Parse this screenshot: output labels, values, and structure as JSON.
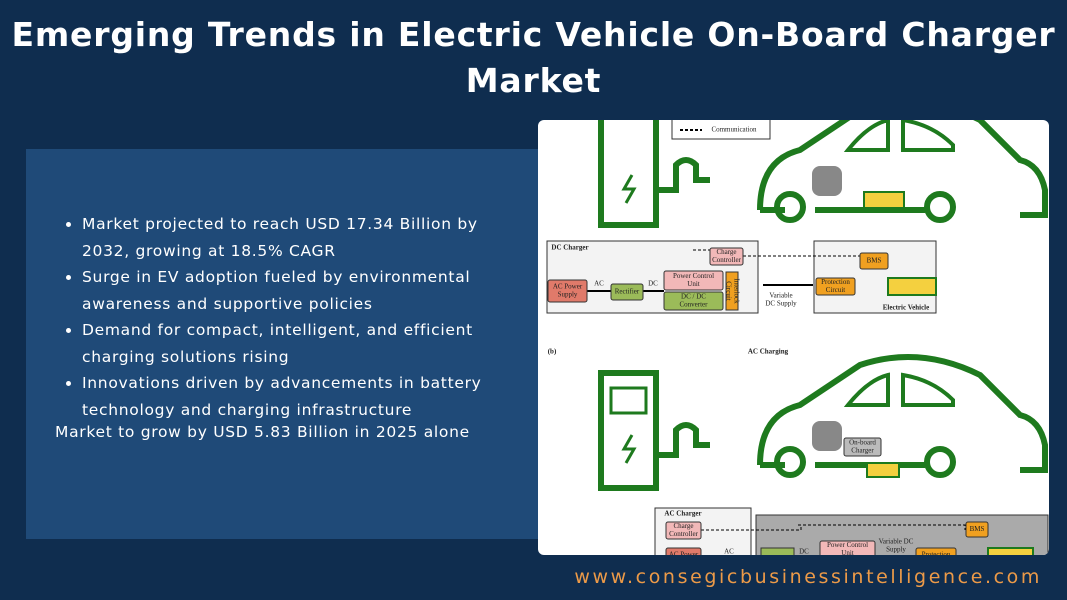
{
  "header": {
    "title": "Emerging Trends in Electric Vehicle On-Board Charger Market"
  },
  "panel": {
    "bullets": [
      "Market projected to reach USD 17.34 Billion by 2032, growing at 18.5% CAGR",
      "Surge in EV adoption fueled by environmental awareness and supportive policies",
      "Demand for compact, intelligent, and efficient charging solutions rising",
      "Innovations driven by advancements in battery technology and charging infrastructure"
    ],
    "summary": "Market to grow by USD 5.83 Billion in 2025 alone"
  },
  "figure": {
    "legend": "Communication",
    "dc": {
      "title": "DC Charger",
      "ac_power_supply": [
        "AC Power",
        "Supply"
      ],
      "ac": "AC",
      "rectifier": "Rectifier",
      "dc": "DC",
      "power_control_unit": [
        "Power Control",
        "Unit"
      ],
      "converter": [
        "DC / DC",
        "Converter"
      ],
      "interlock": [
        "Interlock",
        "Circuit"
      ],
      "charge_controller": [
        "Charge",
        "Controller"
      ],
      "variable_supply": [
        "Variable",
        "DC Supply"
      ],
      "bms": "BMS",
      "protection": [
        "Protection",
        "Circuit"
      ],
      "ev": "Electric Vehicle"
    },
    "panel_label": "(b)",
    "ac_title": "AC Charging",
    "ac": {
      "on_board_charger": [
        "On-board",
        "Charger"
      ],
      "title": "AC Charger",
      "charge_controller": [
        "Charge",
        "Controller"
      ],
      "ac_power_supply": "AC Power",
      "ac": "AC",
      "dc": "DC",
      "power_control_unit": [
        "Power Control",
        "Unit"
      ],
      "variable_supply": [
        "Variable DC",
        "Supply"
      ],
      "bms": "BMS",
      "protection": "Protection"
    }
  },
  "footer": {
    "url": "www.consegicbusinessintelligence.com"
  }
}
